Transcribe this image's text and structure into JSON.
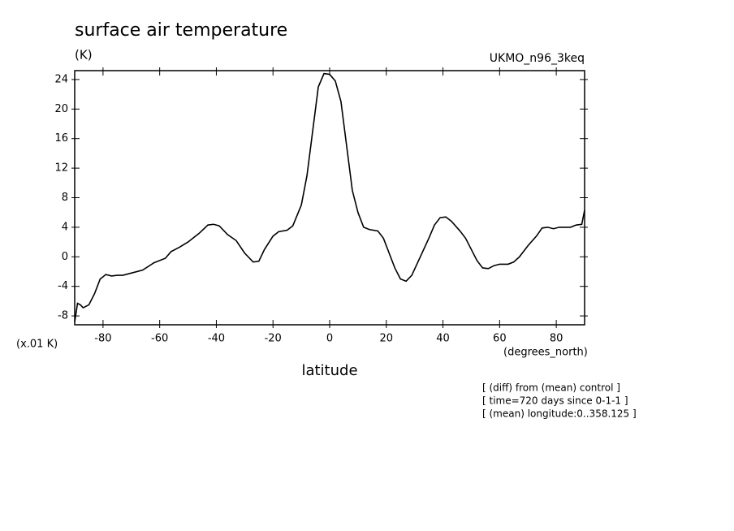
{
  "chart_data": {
    "type": "line",
    "title": "surface air temperature",
    "y_unit": "(K)",
    "dataset": "UKMO_n96_3keq",
    "y_scale_note": "(x.01 K)",
    "x_unit": "(degrees_north)",
    "x_label": "latitude",
    "notes": [
      "[ (diff) from (mean) control ]",
      "[ time=720 days since 0-1-1 ]",
      "[ (mean) longitude:0..358.125 ]"
    ],
    "x": [
      -90,
      -89,
      -88,
      -87,
      -85,
      -83,
      -81,
      -79,
      -77,
      -75,
      -73,
      -70,
      -66,
      -62,
      -58,
      -56,
      -53,
      -50,
      -46,
      -43,
      -41,
      -39,
      -36,
      -33,
      -30,
      -27,
      -25,
      -23,
      -20,
      -18,
      -15,
      -13,
      -10,
      -8,
      -6,
      -4,
      -2,
      0,
      2,
      4,
      6,
      8,
      10,
      12,
      14,
      17,
      19,
      21,
      23,
      25,
      27,
      29,
      32,
      35,
      37,
      39,
      41,
      43,
      46,
      48,
      50,
      52,
      54,
      56,
      58,
      60,
      63,
      65,
      67,
      70,
      73,
      75,
      77,
      79,
      81,
      83,
      85,
      87,
      89,
      90
    ],
    "series": [
      {
        "color": "#000000",
        "values": [
          -8.8,
          -6.3,
          -6.5,
          -6.9,
          -6.5,
          -5,
          -3,
          -2.4,
          -2.6,
          -2.5,
          -2.5,
          -2.2,
          -1.8,
          -0.8,
          -0.2,
          0.7,
          1.3,
          2,
          3.2,
          4.3,
          4.4,
          4.2,
          3,
          2.2,
          0.5,
          -0.7,
          -0.6,
          1,
          2.8,
          3.4,
          3.6,
          4.2,
          7,
          11,
          17,
          23,
          24.8,
          24.7,
          23.8,
          21,
          15,
          9,
          6,
          4,
          3.7,
          3.5,
          2.5,
          0.5,
          -1.5,
          -3,
          -3.3,
          -2.5,
          0,
          2.5,
          4.3,
          5.3,
          5.4,
          4.8,
          3.5,
          2.5,
          1,
          -0.5,
          -1.5,
          -1.6,
          -1.2,
          -1,
          -1,
          -0.7,
          0,
          1.5,
          2.8,
          3.9,
          4,
          3.8,
          4,
          4,
          4,
          4.3,
          4.4,
          6.3
        ]
      }
    ],
    "xlim": [
      -90,
      90
    ],
    "xticks": [
      -80,
      -60,
      -40,
      -20,
      0,
      20,
      40,
      60,
      80
    ],
    "ylim": [
      -9.2,
      25.2
    ],
    "yticks": [
      -8,
      -4,
      0,
      4,
      8,
      12,
      16,
      20,
      24
    ]
  }
}
